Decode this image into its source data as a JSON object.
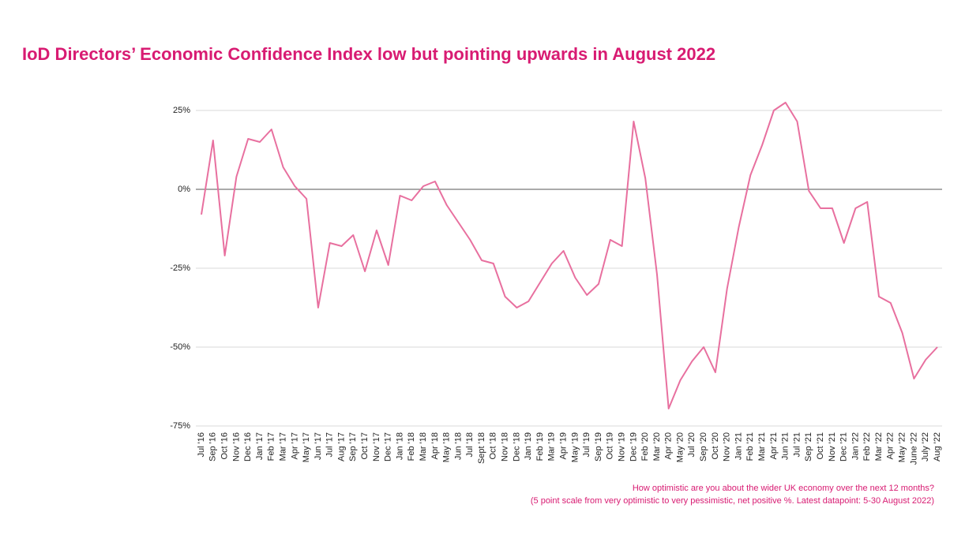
{
  "chart_data": {
    "type": "line",
    "title": "IoD Directors’ Economic Confidence Index low but pointing upwards in August 2022",
    "footnote": [
      "How optimistic are you about the wider UK economy over the next 12 months?",
      "(5 point scale from very optimistic to very pessimistic, net positive %. Latest datapoint: 5-30 August 2022)"
    ],
    "categories": [
      "Jul '16",
      "Sep '16",
      "Oct '16",
      "Nov '16",
      "Dec '16",
      "Jan '17",
      "Feb '17",
      "Mar '17",
      "Apr '17",
      "May '17",
      "Jun '17",
      "Jul '17",
      "Aug '17",
      "Sep '17",
      "Oct '17",
      "Nov '17",
      "Dec '17",
      "Jan '18",
      "Feb '18",
      "Mar '18",
      "Apr '18",
      "May '18",
      "Jun '18",
      "Jul '18",
      "Sept '18",
      "Oct '18",
      "Nov '18",
      "Dec '18",
      "Jan '19",
      "Feb '19",
      "Mar '19",
      "Apr '19",
      "May '19",
      "Jul '19",
      "Sep '19",
      "Oct '19",
      "Nov '19",
      "Dec '19",
      "Feb '20",
      "Mar '20",
      "Apr '20",
      "May '20",
      "Jul '20",
      "Sep '20",
      "Oct '20",
      "Nov '20",
      "Jan '21",
      "Feb '21",
      "Mar '21",
      "Apr '21",
      "Jun '21",
      "Jul '21",
      "Sep '21",
      "Oct '21",
      "Nov '21",
      "Dec '21",
      "Jan '22",
      "Feb '22",
      "Mar '22",
      "Apr '22",
      "May '22",
      "June '22",
      "July '22",
      "Aug '22"
    ],
    "values": [
      -8,
      15.5,
      -21,
      4,
      16,
      15,
      19,
      7,
      1,
      -3,
      -37.5,
      -17,
      -18,
      -14.5,
      -26,
      -13,
      -24,
      -2,
      -3.5,
      1,
      2.5,
      -5,
      -10.5,
      -16,
      -22.5,
      -23.5,
      -34,
      -37.5,
      -35.5,
      -29.5,
      -23.5,
      -19.5,
      -28,
      -33.5,
      -30,
      -16,
      -18,
      21.5,
      3.5,
      -27,
      -69.5,
      -60.5,
      -54.5,
      -50,
      -58,
      -31.5,
      -12,
      4.5,
      14,
      25,
      27.5,
      21.5,
      -0.5,
      -6,
      -6,
      -17,
      -6,
      -4,
      -34,
      -36,
      -45.5,
      -60,
      -54,
      -50
    ],
    "color": "#e8709f",
    "ylim": [
      -75,
      25
    ],
    "yticks": [
      {
        "value": -75,
        "label": "-75%"
      },
      {
        "value": -50,
        "label": "-50%"
      },
      {
        "value": -25,
        "label": "-25%"
      },
      {
        "value": 0,
        "label": "0%"
      },
      {
        "value": 25,
        "label": "25%"
      }
    ],
    "grid": true
  }
}
